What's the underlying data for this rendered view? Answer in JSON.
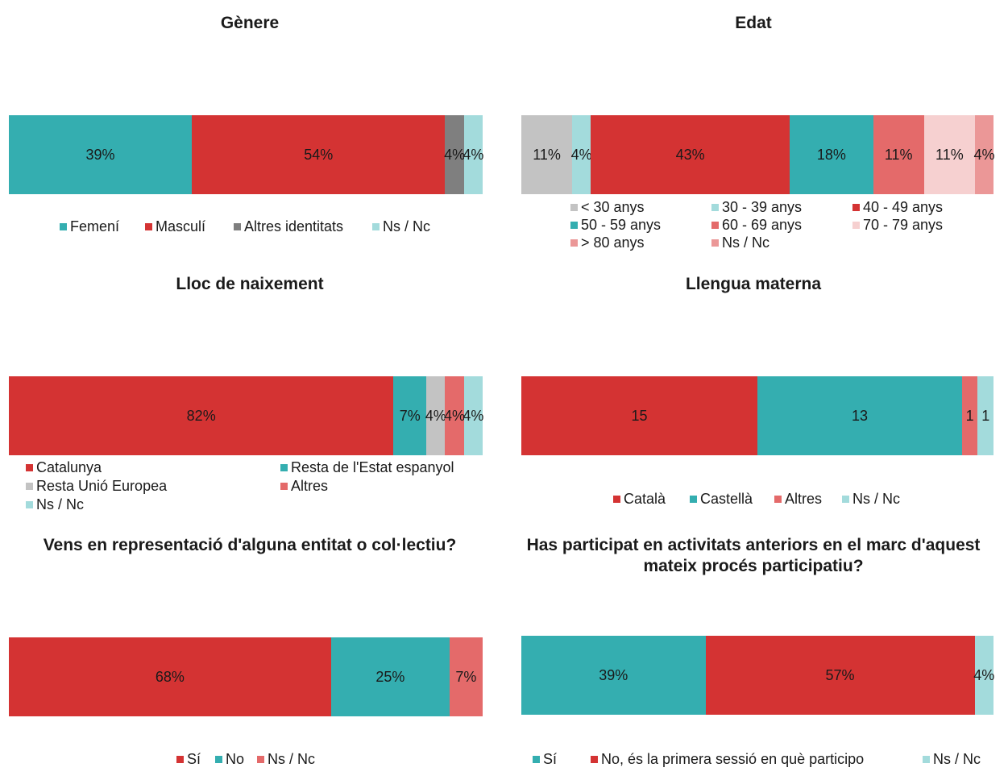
{
  "colors": {
    "teal": "#34aeb0",
    "red": "#d43333",
    "gray": "#7f7f7f",
    "lightteal": "#a3dbdc",
    "lightgray": "#c3c3c3",
    "salmon": "#e46a6a",
    "pink": "#f6d0d0",
    "rose": "#eb9797"
  },
  "chart_data": [
    {
      "type": "bar",
      "orientation": "horizontal-stacked",
      "title": "Gènere",
      "series": [
        {
          "name": "Femení",
          "value": 39,
          "label": "39%"
        },
        {
          "name": "Masculí",
          "value": 54,
          "label": "54%"
        },
        {
          "name": "Altres identitats",
          "value": 4,
          "label": "4%"
        },
        {
          "name": "Ns / Nc",
          "value": 4,
          "label": "4%"
        }
      ]
    },
    {
      "type": "bar",
      "orientation": "horizontal-stacked",
      "title": "Edat",
      "series": [
        {
          "name": "< 30 anys",
          "value": 11,
          "label": "11%"
        },
        {
          "name": "30 - 39 anys",
          "value": 4,
          "label": "4%"
        },
        {
          "name": "40 - 49 anys",
          "value": 43,
          "label": "43%"
        },
        {
          "name": "50 - 59 anys",
          "value": 18,
          "label": "18%"
        },
        {
          "name": "60 - 69 anys",
          "value": 11,
          "label": "11%"
        },
        {
          "name": "70 - 79 anys",
          "value": 11,
          "label": "11%"
        },
        {
          "name": "> 80 anys",
          "value": 0,
          "label": ""
        },
        {
          "name": "Ns / Nc",
          "value": 4,
          "label": "4%"
        }
      ]
    },
    {
      "type": "bar",
      "orientation": "horizontal-stacked",
      "title": "Lloc de naixement",
      "series": [
        {
          "name": "Catalunya",
          "value": 82,
          "label": "82%"
        },
        {
          "name": "Resta de l'Estat espanyol",
          "value": 7,
          "label": "7%"
        },
        {
          "name": "Resta Unió Europea",
          "value": 4,
          "label": "4%"
        },
        {
          "name": "Altres",
          "value": 4,
          "label": "4%"
        },
        {
          "name": "Ns / Nc",
          "value": 4,
          "label": "4%"
        }
      ]
    },
    {
      "type": "bar",
      "orientation": "horizontal-stacked",
      "title": "Llengua materna",
      "series": [
        {
          "name": "Català",
          "value": 15,
          "label": "15"
        },
        {
          "name": "Castellà",
          "value": 13,
          "label": "13"
        },
        {
          "name": "Altres",
          "value": 1,
          "label": "1"
        },
        {
          "name": "Ns / Nc",
          "value": 1,
          "label": "1"
        }
      ]
    },
    {
      "type": "bar",
      "orientation": "horizontal-stacked",
      "title": "Vens en representació d'alguna entitat o col·lectiu?",
      "series": [
        {
          "name": "Sí",
          "value": 68,
          "label": "68%"
        },
        {
          "name": "No",
          "value": 25,
          "label": "25%"
        },
        {
          "name": "Ns / Nc",
          "value": 7,
          "label": "7%"
        }
      ]
    },
    {
      "type": "bar",
      "orientation": "horizontal-stacked",
      "title": "Has participat en activitats anteriors en el marc d'aquest mateix procés participatiu?",
      "series": [
        {
          "name": "Sí",
          "value": 39,
          "label": "39%"
        },
        {
          "name": "No, és la primera sessió en què participo",
          "value": 57,
          "label": "57%"
        },
        {
          "name": "Ns / Nc",
          "value": 4,
          "label": "4%"
        }
      ]
    }
  ]
}
